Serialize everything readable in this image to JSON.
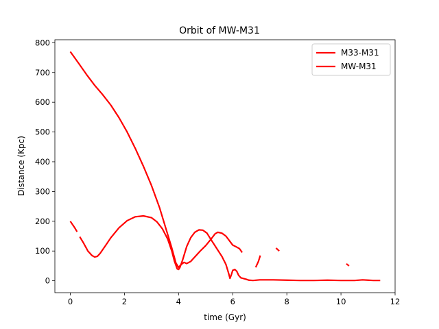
{
  "chart_data": {
    "type": "line",
    "title": "Orbit of MW-M31",
    "xlabel": "time (Gyr)",
    "ylabel": "Distance (Kpc)",
    "xlim": [
      -0.57,
      12
    ],
    "ylim": [
      -40,
      810
    ],
    "xticks": [
      0,
      2,
      4,
      6,
      8,
      10,
      12
    ],
    "yticks": [
      0,
      100,
      200,
      300,
      400,
      500,
      600,
      700,
      800
    ],
    "grid": false,
    "legend_position": "top-right",
    "series": [
      {
        "name": "M33-M31",
        "color": "#ff0000",
        "segments": [
          [
            [
              0,
              200
            ],
            [
              0.15,
              180
            ],
            [
              0.25,
              165
            ]
          ],
          [
            [
              0.35,
              148
            ],
            [
              0.5,
              125
            ],
            [
              0.65,
              100
            ],
            [
              0.8,
              85
            ],
            [
              0.9,
              80
            ],
            [
              1.0,
              82
            ],
            [
              1.1,
              92
            ],
            [
              1.3,
              118
            ],
            [
              1.5,
              145
            ],
            [
              1.8,
              178
            ],
            [
              2.1,
              202
            ],
            [
              2.4,
              215
            ],
            [
              2.7,
              218
            ],
            [
              3.0,
              212
            ],
            [
              3.2,
              198
            ],
            [
              3.4,
              175
            ],
            [
              3.6,
              140
            ],
            [
              3.75,
              100
            ],
            [
              3.85,
              65
            ],
            [
              3.95,
              40
            ],
            [
              4.0,
              38
            ],
            [
              4.05,
              45
            ],
            [
              4.15,
              70
            ],
            [
              4.3,
              115
            ],
            [
              4.45,
              145
            ],
            [
              4.6,
              163
            ],
            [
              4.75,
              171
            ],
            [
              4.9,
              170
            ],
            [
              5.05,
              160
            ],
            [
              5.2,
              138
            ],
            [
              5.4,
              110
            ],
            [
              5.6,
              82
            ],
            [
              5.75,
              55
            ],
            [
              5.85,
              25
            ],
            [
              5.9,
              8
            ],
            [
              5.95,
              20
            ],
            [
              6.0,
              35
            ],
            [
              6.08,
              38
            ],
            [
              6.15,
              32
            ],
            [
              6.22,
              18
            ],
            [
              6.3,
              10
            ],
            [
              6.5,
              5
            ],
            [
              6.6,
              2
            ],
            [
              6.75,
              1
            ],
            [
              7.0,
              3
            ],
            [
              7.5,
              3
            ],
            [
              8.0,
              2
            ],
            [
              8.5,
              1
            ],
            [
              9.0,
              1
            ],
            [
              9.5,
              2
            ],
            [
              10.0,
              1
            ],
            [
              10.5,
              1
            ],
            [
              10.8,
              3
            ],
            [
              11.0,
              2
            ],
            [
              11.2,
              1
            ],
            [
              11.45,
              1
            ]
          ]
        ]
      },
      {
        "name": "MW-M31",
        "color": "#ff0000",
        "segments": [
          [
            [
              0,
              770
            ],
            [
              0.3,
              732
            ],
            [
              0.6,
              693
            ],
            [
              0.9,
              657
            ],
            [
              1.2,
              625
            ],
            [
              1.5,
              590
            ],
            [
              1.8,
              548
            ],
            [
              2.1,
              500
            ],
            [
              2.4,
              445
            ],
            [
              2.7,
              385
            ],
            [
              3.0,
              320
            ],
            [
              3.3,
              245
            ],
            [
              3.55,
              170
            ],
            [
              3.75,
              110
            ],
            [
              3.9,
              60
            ],
            [
              4.0,
              45
            ],
            [
              4.1,
              55
            ],
            [
              4.2,
              62
            ],
            [
              4.3,
              58
            ],
            [
              4.45,
              65
            ],
            [
              4.6,
              80
            ],
            [
              4.8,
              100
            ],
            [
              5.0,
              118
            ],
            [
              5.2,
              140
            ],
            [
              5.35,
              158
            ],
            [
              5.45,
              163
            ],
            [
              5.6,
              160
            ],
            [
              5.75,
              150
            ],
            [
              5.9,
              132
            ],
            [
              6.0,
              120
            ],
            [
              6.15,
              113
            ],
            [
              6.25,
              108
            ],
            [
              6.35,
              95
            ]
          ],
          [
            [
              6.85,
              45
            ],
            [
              6.95,
              65
            ],
            [
              7.02,
              85
            ]
          ],
          [
            [
              7.6,
              110
            ],
            [
              7.72,
              100
            ]
          ],
          [
            [
              10.2,
              57
            ],
            [
              10.3,
              50
            ]
          ]
        ]
      }
    ]
  }
}
